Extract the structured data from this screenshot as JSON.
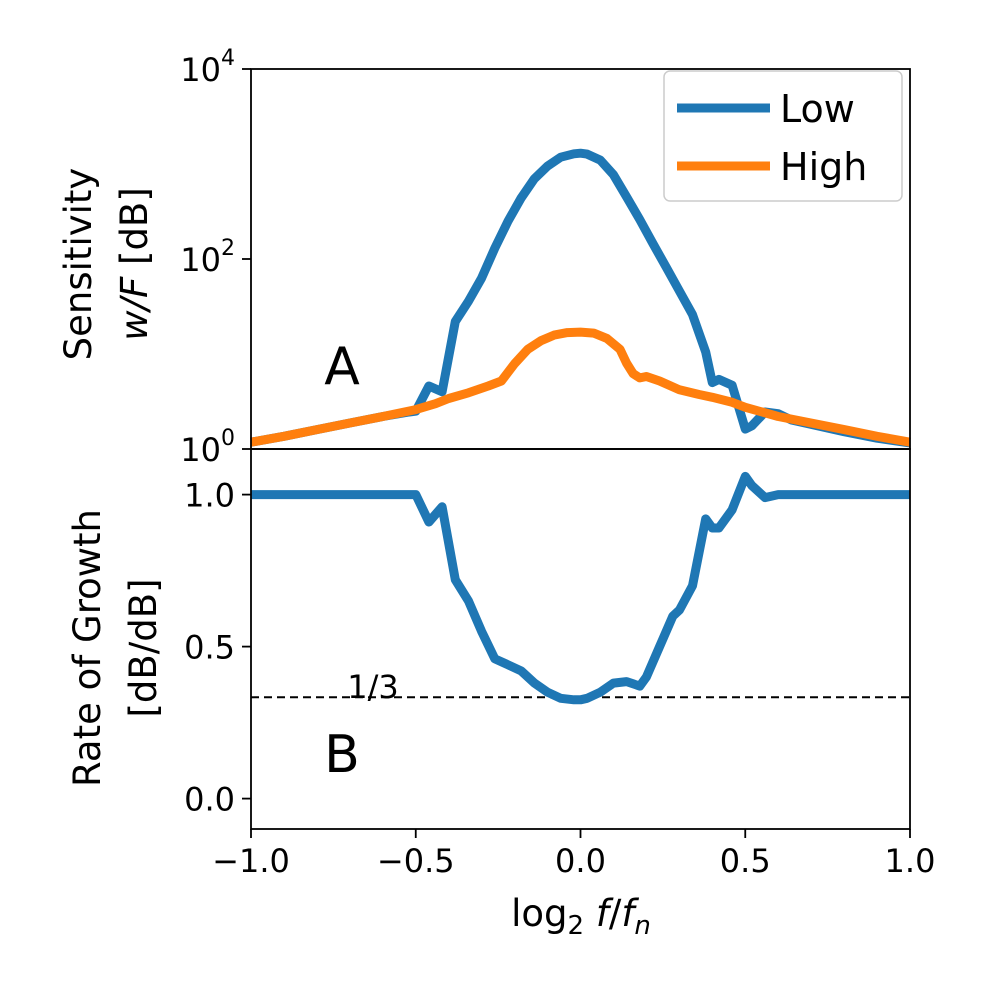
{
  "colors": {
    "low": "#1f77b4",
    "high": "#ff7f0e",
    "ref": "#000000"
  },
  "chart_data": [
    {
      "type": "line",
      "panel_label": "A",
      "ylabel_line1": "Sensitivity",
      "ylabel_line2_var": "w/F",
      "ylabel_line2_unit": "[dB]",
      "yscale": "log",
      "xlim": [
        -1.0,
        1.0
      ],
      "ylim": [
        1,
        10000
      ],
      "ytick_base": "10",
      "yticks": [
        {
          "value": 1,
          "exp": "0"
        },
        {
          "value": 100,
          "exp": "2"
        },
        {
          "value": 10000,
          "exp": "4"
        }
      ],
      "legend_position": "top-right",
      "series": [
        {
          "name": "Low",
          "x": [
            -1.0,
            -0.9,
            -0.8,
            -0.7,
            -0.6,
            -0.52,
            -0.5,
            -0.46,
            -0.42,
            -0.38,
            -0.34,
            -0.3,
            -0.26,
            -0.22,
            -0.18,
            -0.14,
            -0.1,
            -0.06,
            -0.02,
            0.0,
            0.02,
            0.06,
            0.1,
            0.14,
            0.18,
            0.22,
            0.26,
            0.3,
            0.34,
            0.38,
            0.4,
            0.42,
            0.46,
            0.5,
            0.52,
            0.56,
            0.6,
            0.64,
            0.7,
            0.8,
            0.9,
            1.0
          ],
          "y": [
            1.18,
            1.36,
            1.6,
            1.88,
            2.2,
            2.45,
            2.5,
            4.6,
            4.0,
            22,
            36,
            63,
            130,
            250,
            440,
            700,
            950,
            1180,
            1280,
            1300,
            1270,
            1100,
            770,
            450,
            260,
            145,
            82,
            46,
            26,
            10.5,
            5.0,
            5.4,
            4.7,
            1.62,
            1.75,
            2.45,
            2.35,
            2.02,
            1.82,
            1.52,
            1.3,
            1.16
          ]
        },
        {
          "name": "High",
          "x": [
            -1.0,
            -0.9,
            -0.8,
            -0.7,
            -0.6,
            -0.5,
            -0.44,
            -0.4,
            -0.34,
            -0.28,
            -0.24,
            -0.2,
            -0.16,
            -0.12,
            -0.08,
            -0.04,
            0.0,
            0.04,
            0.08,
            0.12,
            0.14,
            0.16,
            0.18,
            0.2,
            0.24,
            0.3,
            0.36,
            0.4,
            0.46,
            0.5,
            0.6,
            0.7,
            0.8,
            0.9,
            1.0
          ],
          "y": [
            1.18,
            1.36,
            1.6,
            1.88,
            2.2,
            2.6,
            3.0,
            3.4,
            3.9,
            4.6,
            5.2,
            7.9,
            11.2,
            13.8,
            15.8,
            16.8,
            17.0,
            16.6,
            14.6,
            11.2,
            8.0,
            6.2,
            5.6,
            5.8,
            5.2,
            4.2,
            3.75,
            3.5,
            3.1,
            2.75,
            2.2,
            1.88,
            1.6,
            1.36,
            1.18
          ]
        }
      ]
    },
    {
      "type": "line",
      "panel_label": "B",
      "ylabel_line1": "Rate of Growth",
      "ylabel_line2": "[dB/dB]",
      "xlabel_base": "log",
      "xlabel_sub": "2",
      "xlabel_f": "f",
      "xlabel_slash": "/",
      "xlabel_fn": "f",
      "xlabel_n": "n",
      "xlim": [
        -1.0,
        1.0
      ],
      "ylim": [
        -0.1,
        1.15
      ],
      "yticks": [
        {
          "value": 0.0,
          "label": "0.0"
        },
        {
          "value": 0.5,
          "label": "0.5"
        },
        {
          "value": 1.0,
          "label": "1.0"
        }
      ],
      "xticks": [
        {
          "value": -1.0,
          "label": "−1.0"
        },
        {
          "value": -0.5,
          "label": "−0.5"
        },
        {
          "value": 0.0,
          "label": "0.0"
        },
        {
          "value": 0.5,
          "label": "0.5"
        },
        {
          "value": 1.0,
          "label": "1.0"
        }
      ],
      "reference_line": {
        "value": 0.3333,
        "label": "1/3",
        "style": "dashed"
      },
      "series": [
        {
          "name": "Low",
          "x": [
            -1.0,
            -0.8,
            -0.6,
            -0.52,
            -0.5,
            -0.46,
            -0.42,
            -0.38,
            -0.34,
            -0.3,
            -0.26,
            -0.22,
            -0.18,
            -0.14,
            -0.1,
            -0.06,
            -0.02,
            0.0,
            0.02,
            0.06,
            0.1,
            0.14,
            0.18,
            0.2,
            0.24,
            0.28,
            0.3,
            0.34,
            0.38,
            0.4,
            0.42,
            0.46,
            0.5,
            0.52,
            0.56,
            0.6,
            0.64,
            0.7,
            0.8,
            0.9,
            1.0
          ],
          "y": [
            1.0,
            1.0,
            1.0,
            1.0,
            1.0,
            0.91,
            0.96,
            0.72,
            0.65,
            0.55,
            0.46,
            0.44,
            0.42,
            0.38,
            0.35,
            0.33,
            0.325,
            0.325,
            0.33,
            0.35,
            0.38,
            0.385,
            0.37,
            0.4,
            0.5,
            0.6,
            0.62,
            0.7,
            0.92,
            0.89,
            0.89,
            0.95,
            1.06,
            1.03,
            0.99,
            1.0,
            1.0,
            1.0,
            1.0,
            1.0,
            1.0
          ]
        }
      ]
    }
  ]
}
